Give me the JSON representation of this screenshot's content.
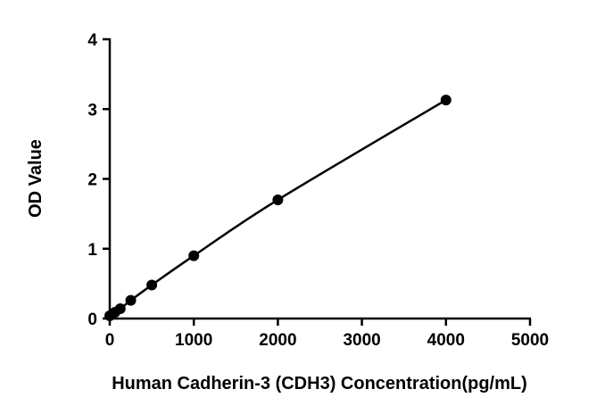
{
  "chart_data": {
    "type": "scatter",
    "title": "",
    "xlabel": "Human Cadherin-3 (CDH3)  Concentration(pg/mL)",
    "ylabel": "OD Value",
    "xlim": [
      0,
      5000
    ],
    "ylim": [
      0,
      4
    ],
    "x_ticks": [
      0,
      1000,
      2000,
      3000,
      4000,
      5000
    ],
    "y_ticks": [
      0,
      1,
      2,
      3,
      4
    ],
    "x_tick_labels": [
      "0",
      "1000",
      "2000",
      "3000",
      "4000",
      "5000"
    ],
    "y_tick_labels": [
      "0",
      "1",
      "2",
      "3",
      "4"
    ],
    "grid": false,
    "legend": "none",
    "fit_line": true,
    "series": [
      {
        "x": [
          0,
          62.5,
          125,
          250,
          500,
          1000,
          2000,
          4000
        ],
        "y": [
          0.04,
          0.09,
          0.14,
          0.26,
          0.48,
          0.9,
          1.7,
          3.13
        ]
      }
    ],
    "colors": {
      "points": "#000000",
      "line": "#000000",
      "axes": "#000000"
    }
  }
}
